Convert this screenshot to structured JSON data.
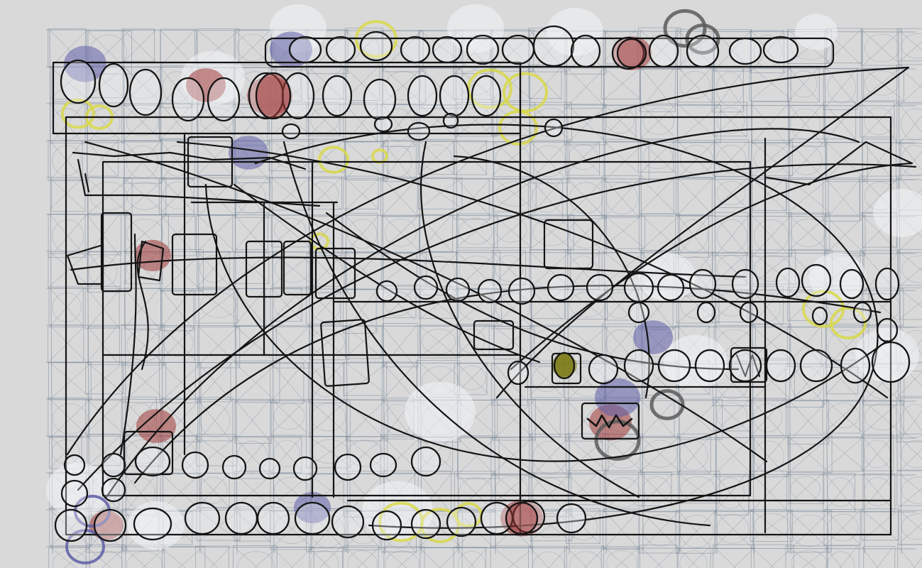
{
  "canvas": {
    "background_color": "#d9d9d9",
    "grid_color": "#7b8b9b",
    "ink_color": "#141414",
    "accent_colors": {
      "red": "#a33a3a",
      "yellow": "#d8d84a",
      "blue": "#5e5ea8",
      "gray": "#5a5a5a",
      "white": "#f2f4f7",
      "olive": "#7a7a10"
    }
  }
}
